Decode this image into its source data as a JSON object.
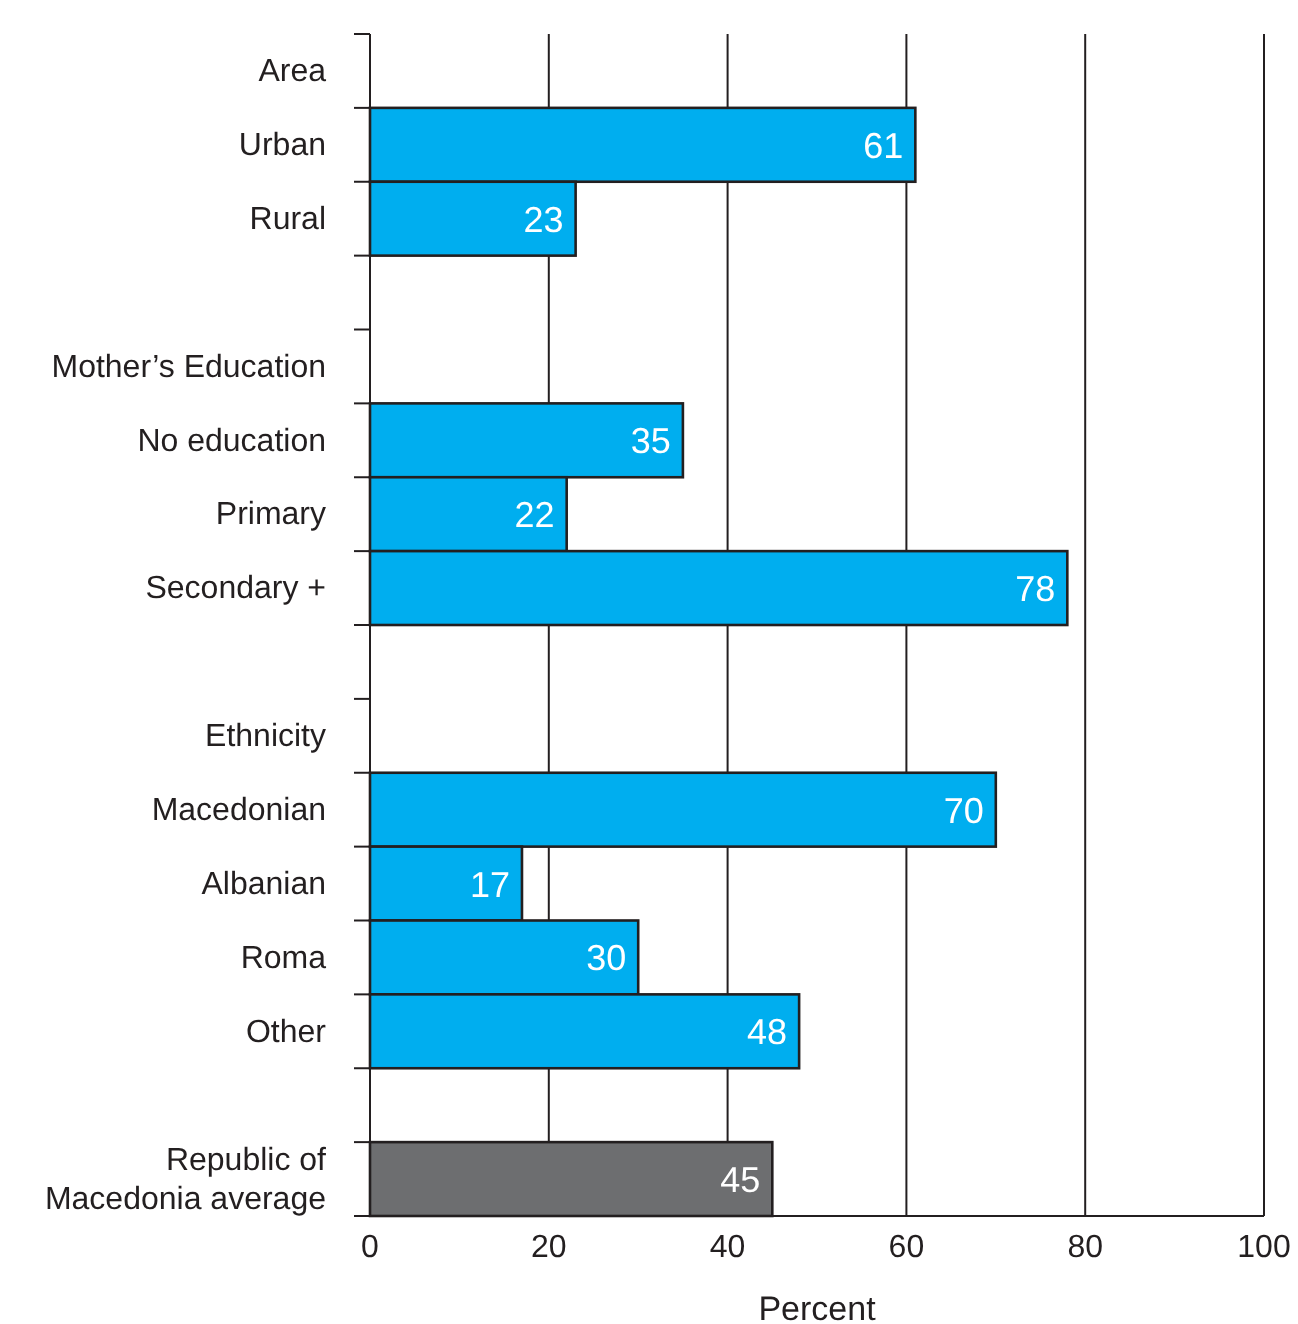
{
  "chart_data": {
    "type": "bar",
    "orientation": "horizontal",
    "xlabel": "Percent",
    "categories": [
      "Area",
      "Urban",
      "Rural",
      null,
      "Mother’s Education",
      "No education",
      "Primary",
      "Secondary +",
      null,
      "Ethnicity",
      "Macedonian",
      "Albanian",
      "Roma",
      "Other",
      null,
      "Republic of Macedonia average"
    ],
    "values": [
      null,
      61,
      23,
      null,
      null,
      35,
      22,
      78,
      null,
      null,
      70,
      17,
      30,
      48,
      null,
      45
    ],
    "colors": [
      null,
      "#00aeef",
      "#00aeef",
      null,
      null,
      "#00aeef",
      "#00aeef",
      "#00aeef",
      null,
      null,
      "#00aeef",
      "#00aeef",
      "#00aeef",
      "#00aeef",
      null,
      "#6d6e70"
    ],
    "xlim": [
      0,
      100
    ],
    "xticks": [
      0,
      20,
      40,
      60,
      80,
      100
    ],
    "grid": "x",
    "data_labels": true
  }
}
